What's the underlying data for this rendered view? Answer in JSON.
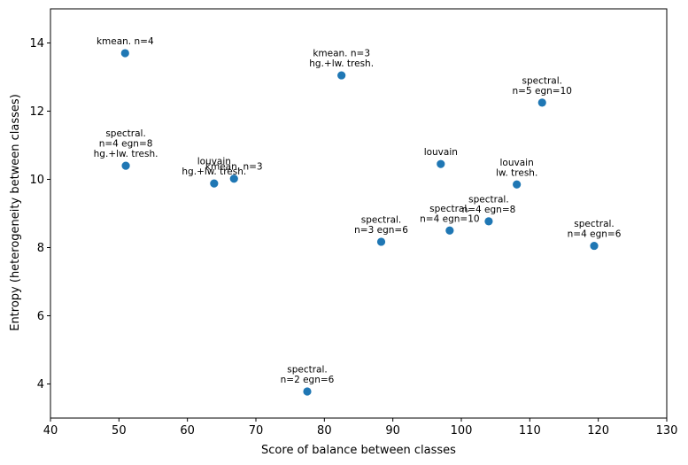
{
  "chart_data": {
    "type": "scatter",
    "title": "",
    "xlabel": "Score of balance between classes",
    "ylabel": "Entropy (heterogeneity between classes)",
    "xlim": [
      40,
      130
    ],
    "ylim": [
      3,
      15
    ],
    "xticks": [
      40,
      50,
      60,
      70,
      80,
      90,
      100,
      110,
      120,
      130
    ],
    "yticks": [
      4,
      6,
      8,
      10,
      12,
      14
    ],
    "grid": false,
    "marker_color": "#1f77b4",
    "points": [
      {
        "x": 50.9,
        "y": 13.7,
        "label": [
          "kmean. n=4"
        ]
      },
      {
        "x": 82.5,
        "y": 13.05,
        "label": [
          "kmean. n=3",
          "hg.+lw. tresh."
        ]
      },
      {
        "x": 111.8,
        "y": 12.25,
        "label": [
          "spectral.",
          "n=5 egn=10"
        ]
      },
      {
        "x": 51.0,
        "y": 10.4,
        "label": [
          "spectral.",
          "n=4 egn=8",
          "hg.+lw. tresh."
        ]
      },
      {
        "x": 63.9,
        "y": 9.88,
        "label": [
          "louvain",
          "hg.+lw. tresh."
        ]
      },
      {
        "x": 66.8,
        "y": 10.02,
        "label": [
          "kmean. n=3"
        ]
      },
      {
        "x": 97.0,
        "y": 10.45,
        "label": [
          "louvain"
        ]
      },
      {
        "x": 108.1,
        "y": 9.85,
        "label": [
          "louvain",
          "lw. tresh."
        ]
      },
      {
        "x": 104.0,
        "y": 8.77,
        "label": [
          "spectral.",
          "n=4 egn=8"
        ]
      },
      {
        "x": 98.3,
        "y": 8.5,
        "label": [
          "spectral.",
          "n=4 egn=10"
        ]
      },
      {
        "x": 88.3,
        "y": 8.17,
        "label": [
          "spectral.",
          "n=3 egn=6"
        ]
      },
      {
        "x": 119.4,
        "y": 8.05,
        "label": [
          "spectral.",
          "n=4 egn=6"
        ]
      },
      {
        "x": 77.5,
        "y": 3.78,
        "label": [
          "spectral.",
          "n=2 egn=6"
        ]
      }
    ]
  }
}
